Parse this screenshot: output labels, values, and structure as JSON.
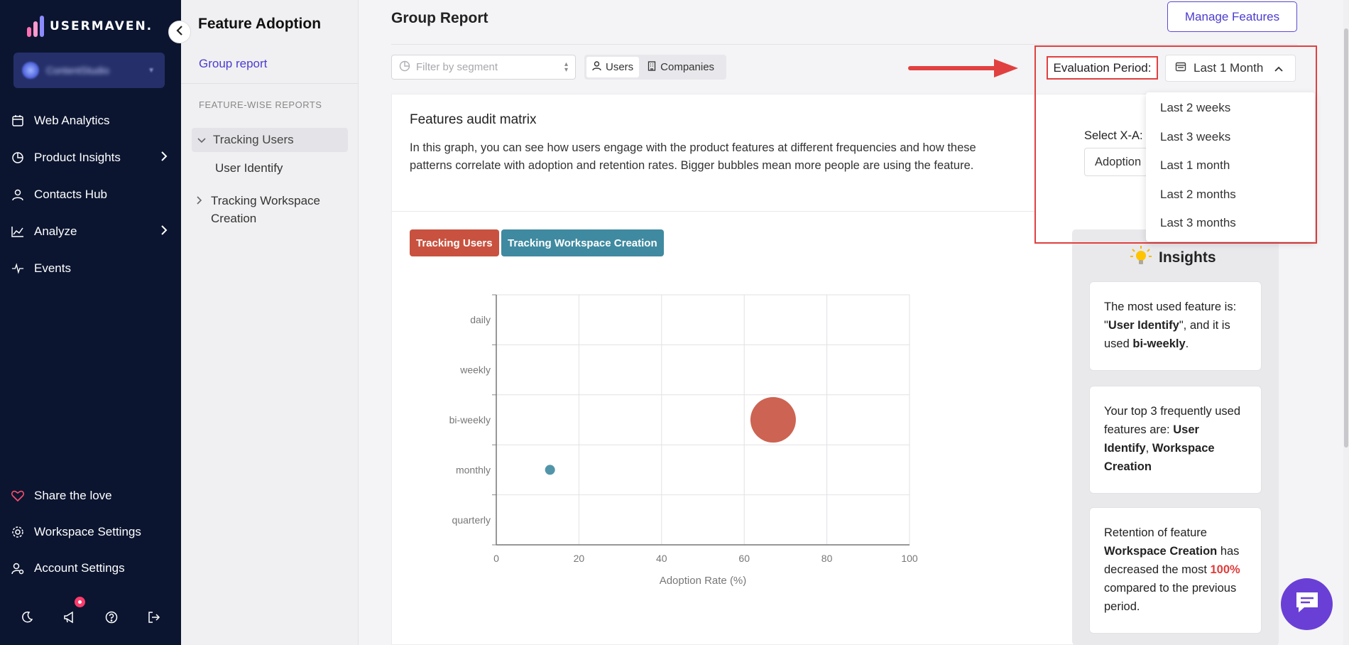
{
  "sidebar": {
    "logo_text": "USERMAVEN.",
    "workspace_name": "ContentStudio",
    "nav": [
      {
        "label": "Web Analytics",
        "icon": "calendar-icon"
      },
      {
        "label": "Product Insights",
        "icon": "pie-chart-icon"
      },
      {
        "label": "Contacts Hub",
        "icon": "person-icon"
      },
      {
        "label": "Analyze",
        "icon": "line-chart-icon"
      },
      {
        "label": "Events",
        "icon": "pulse-icon"
      }
    ],
    "bottom_nav": [
      {
        "label": "Share the love",
        "icon": "heart-icon"
      },
      {
        "label": "Workspace Settings",
        "icon": "gear-icon"
      },
      {
        "label": "Account Settings",
        "icon": "user-gear-icon"
      }
    ]
  },
  "subsidebar": {
    "title": "Feature Adoption",
    "group_report_link": "Group report",
    "section_label": "FEATURE-WISE REPORTS",
    "items": [
      {
        "label": "Tracking Users"
      },
      {
        "label": "User Identify"
      },
      {
        "label": "Tracking Workspace",
        "label2": "Creation"
      }
    ]
  },
  "main": {
    "title": "Group Report",
    "manage_button": "Manage Features",
    "segment_placeholder": "Filter by segment",
    "toggle": {
      "users": "Users",
      "companies": "Companies"
    },
    "eval_label": "Evaluation Period:",
    "eval_value": "Last 1 Month",
    "dropdown_options": [
      "Last 2 weeks",
      "Last 3 weeks",
      "Last 1 month",
      "Last 2 months",
      "Last 3 months"
    ]
  },
  "card": {
    "title": "Features audit matrix",
    "description": "In this graph, you can see how users engage with the product features at different frequencies and how these patterns correlate with adoption and retention rates. Bigger bubbles mean more people are using the feature.",
    "xaxis_label": "Select X-A:",
    "xaxis_value": "Adoption",
    "tags": [
      "Tracking Users",
      "Tracking Workspace Creation"
    ]
  },
  "colors": {
    "tracking_users": "#c8523f",
    "tracking_workspace": "#3f8aa0",
    "accent": "#4b3ccf",
    "highlight": "#e14040"
  },
  "chart_data": {
    "type": "scatter",
    "xlabel": "Adoption Rate (%)",
    "ylabel": "",
    "xlim": [
      0,
      100
    ],
    "x_ticks": [
      0,
      20,
      40,
      60,
      80,
      100
    ],
    "y_categories": [
      "daily",
      "weekly",
      "bi-weekly",
      "monthly",
      "quarterly"
    ],
    "series": [
      {
        "name": "Tracking Users",
        "color": "#c8523f",
        "points": [
          {
            "x": 67,
            "y": "bi-weekly",
            "size": "large"
          }
        ]
      },
      {
        "name": "Tracking Workspace Creation",
        "color": "#3f8aa0",
        "points": [
          {
            "x": 13,
            "y": "monthly",
            "size": "small"
          }
        ]
      }
    ]
  },
  "insights": {
    "title": "Insights",
    "card1": {
      "t1": "The most used feature is: \"",
      "b1": "User Identify",
      "t2": "\", and it is used ",
      "b2": "bi-weekly",
      "t3": "."
    },
    "card2": {
      "t1": "Your top 3 frequently used features are: ",
      "b1": "User Identify",
      "t2": ", ",
      "b2": "Workspace Creation"
    },
    "card3": {
      "t1": "Retention of feature ",
      "b1": "Workspace Creation",
      "t2": " has decreased the most ",
      "r1": "100%",
      "t3": " compared to the previous period."
    }
  }
}
